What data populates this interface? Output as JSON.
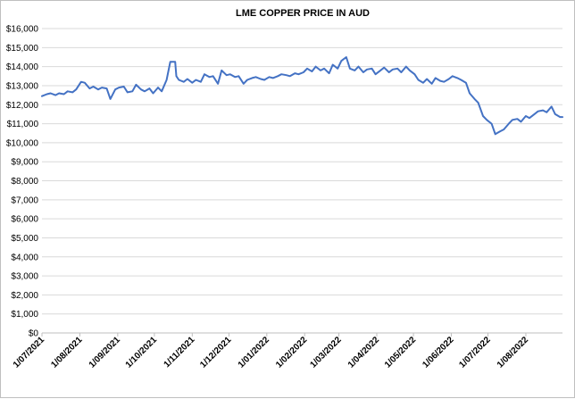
{
  "chart_data": {
    "type": "line",
    "title": "LME COPPER PRICE IN AUD",
    "xlabel": "",
    "ylabel": "",
    "ylim": [
      0,
      16000
    ],
    "yticks": [
      0,
      1000,
      2000,
      3000,
      4000,
      5000,
      6000,
      7000,
      8000,
      9000,
      10000,
      11000,
      12000,
      13000,
      14000,
      15000,
      16000
    ],
    "ytick_labels": [
      "$0",
      "$1,000",
      "$2,000",
      "$3,000",
      "$4,000",
      "$5,000",
      "$6,000",
      "$7,000",
      "$8,000",
      "$9,000",
      "$10,000",
      "$11,000",
      "$12,000",
      "$13,000",
      "$14,000",
      "$15,000",
      "$16,000"
    ],
    "xlim": [
      "2021-07-01",
      "2022-08-31"
    ],
    "xticks": [
      "2021-07-01",
      "2021-08-01",
      "2021-09-01",
      "2021-10-01",
      "2021-11-01",
      "2021-12-01",
      "2022-01-01",
      "2022-02-01",
      "2022-03-01",
      "2022-04-01",
      "2022-05-01",
      "2022-06-01",
      "2022-07-01",
      "2022-08-01"
    ],
    "xtick_labels": [
      "1/07/2021",
      "1/08/2021",
      "1/09/2021",
      "1/10/2021",
      "1/11/2021",
      "1/12/2021",
      "1/01/2022",
      "1/02/2022",
      "1/03/2022",
      "1/04/2022",
      "1/05/2022",
      "1/06/2022",
      "1/07/2022",
      "1/08/2022"
    ],
    "grid": "horizontal",
    "legend": "none",
    "series_color": "#4472c4",
    "series": [
      {
        "x": [
          "2021-07-01",
          "2021-07-05",
          "2021-07-08",
          "2021-07-12",
          "2021-07-15",
          "2021-07-19",
          "2021-07-22",
          "2021-07-26",
          "2021-07-29",
          "2021-08-02",
          "2021-08-05",
          "2021-08-09",
          "2021-08-12",
          "2021-08-16",
          "2021-08-19",
          "2021-08-23",
          "2021-08-26",
          "2021-08-30",
          "2021-09-02",
          "2021-09-06",
          "2021-09-09",
          "2021-09-13",
          "2021-09-16",
          "2021-09-20",
          "2021-09-23",
          "2021-09-27",
          "2021-09-30",
          "2021-10-04",
          "2021-10-07",
          "2021-10-11",
          "2021-10-14",
          "2021-10-18",
          "2021-10-19",
          "2021-10-21",
          "2021-10-25",
          "2021-10-28",
          "2021-11-01",
          "2021-11-04",
          "2021-11-08",
          "2021-11-11",
          "2021-11-15",
          "2021-11-18",
          "2021-11-22",
          "2021-11-25",
          "2021-11-29",
          "2021-12-02",
          "2021-12-06",
          "2021-12-09",
          "2021-12-13",
          "2021-12-16",
          "2021-12-20",
          "2021-12-23",
          "2021-12-27",
          "2021-12-30",
          "2022-01-03",
          "2022-01-06",
          "2022-01-10",
          "2022-01-13",
          "2022-01-17",
          "2022-01-20",
          "2022-01-24",
          "2022-01-27",
          "2022-01-31",
          "2022-02-03",
          "2022-02-07",
          "2022-02-10",
          "2022-02-14",
          "2022-02-17",
          "2022-02-21",
          "2022-02-24",
          "2022-02-28",
          "2022-03-03",
          "2022-03-07",
          "2022-03-10",
          "2022-03-14",
          "2022-03-17",
          "2022-03-21",
          "2022-03-24",
          "2022-03-28",
          "2022-03-31",
          "2022-04-04",
          "2022-04-07",
          "2022-04-11",
          "2022-04-14",
          "2022-04-18",
          "2022-04-21",
          "2022-04-25",
          "2022-04-28",
          "2022-05-02",
          "2022-05-05",
          "2022-05-09",
          "2022-05-12",
          "2022-05-16",
          "2022-05-19",
          "2022-05-23",
          "2022-05-26",
          "2022-05-30",
          "2022-06-02",
          "2022-06-06",
          "2022-06-09",
          "2022-06-13",
          "2022-06-16",
          "2022-06-20",
          "2022-06-23",
          "2022-06-27",
          "2022-06-30",
          "2022-07-04",
          "2022-07-07",
          "2022-07-11",
          "2022-07-14",
          "2022-07-18",
          "2022-07-21",
          "2022-07-25",
          "2022-07-28",
          "2022-08-01",
          "2022-08-04",
          "2022-08-08",
          "2022-08-11",
          "2022-08-15",
          "2022-08-18",
          "2022-08-22",
          "2022-08-25",
          "2022-08-29",
          "2022-08-31"
        ],
        "values": [
          12450,
          12550,
          12600,
          12500,
          12600,
          12550,
          12700,
          12650,
          12800,
          13200,
          13150,
          12850,
          12950,
          12800,
          12900,
          12850,
          12300,
          12800,
          12900,
          12950,
          12650,
          12700,
          13050,
          12800,
          12700,
          12850,
          12600,
          12900,
          12700,
          13300,
          14250,
          14250,
          13500,
          13300,
          13200,
          13350,
          13150,
          13300,
          13200,
          13600,
          13450,
          13500,
          13100,
          13800,
          13550,
          13600,
          13450,
          13500,
          13100,
          13300,
          13400,
          13450,
          13350,
          13300,
          13450,
          13400,
          13500,
          13600,
          13550,
          13500,
          13650,
          13600,
          13700,
          13900,
          13750,
          14000,
          13800,
          13900,
          13650,
          14100,
          13900,
          14300,
          14500,
          13900,
          13800,
          14000,
          13700,
          13850,
          13900,
          13600,
          13800,
          13950,
          13700,
          13850,
          13900,
          13700,
          14000,
          13800,
          13600,
          13300,
          13150,
          13350,
          13100,
          13400,
          13250,
          13200,
          13350,
          13500,
          13400,
          13300,
          13150,
          12600,
          12300,
          12100,
          11400,
          11200,
          11000,
          10450,
          10600,
          10700,
          11000,
          11200,
          11250,
          11100,
          11400,
          11300,
          11500,
          11650,
          11700,
          11600,
          11900,
          11500,
          11350,
          11350
        ]
      }
    ]
  }
}
